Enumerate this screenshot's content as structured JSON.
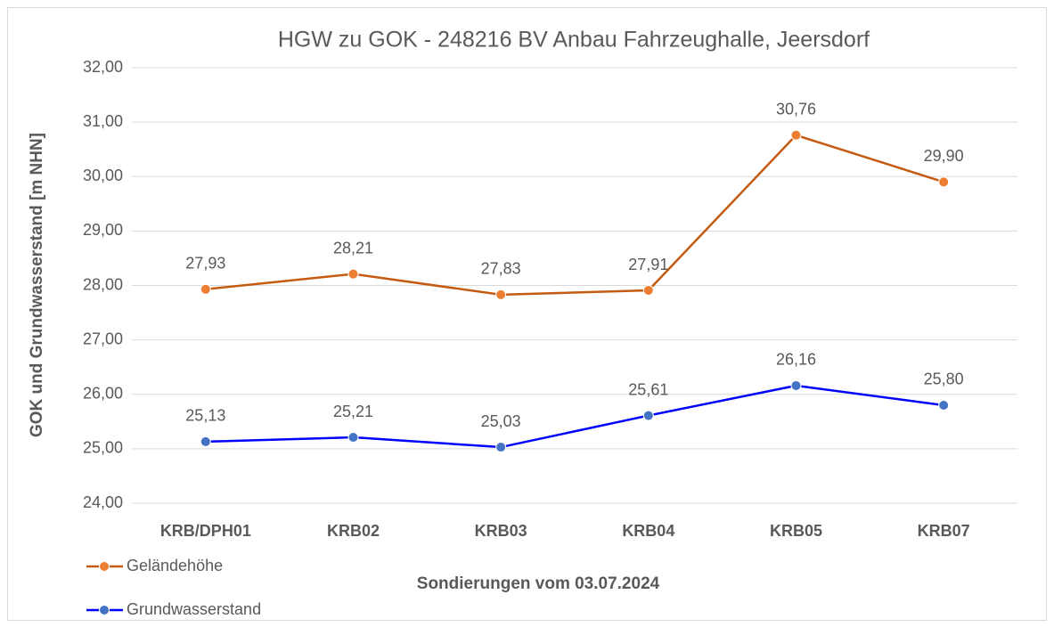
{
  "chart_data": {
    "type": "line",
    "title": "HGW zu GOK - 248216 BV Anbau Fahrzeughalle, Jeersdorf",
    "x_label": "Sondierungen vom 03.07.2024",
    "y_label": "GOK und Grundwasserstand [m NHN]",
    "categories": [
      "KRB/DPH01",
      "KRB02",
      "KRB03",
      "KRB04",
      "KRB05",
      "KRB07"
    ],
    "series": [
      {
        "name": "Geländehöhe",
        "color": "#c55a11",
        "marker_color": "#ed7d31",
        "values": [
          27.93,
          28.21,
          27.83,
          27.91,
          30.76,
          29.9
        ],
        "value_labels": [
          "27,93",
          "28,21",
          "27,83",
          "27,91",
          "30,76",
          "29,90"
        ]
      },
      {
        "name": "Grundwasserstand",
        "color": "#0000ff",
        "marker_color": "#4472c4",
        "values": [
          25.13,
          25.21,
          25.03,
          25.61,
          26.16,
          25.8
        ],
        "value_labels": [
          "25,13",
          "25,21",
          "25,03",
          "25,61",
          "26,16",
          "25,80"
        ]
      }
    ],
    "ylim": [
      24,
      32
    ],
    "yticks": [
      {
        "value": 24,
        "label": "24,00"
      },
      {
        "value": 25,
        "label": "25,00"
      },
      {
        "value": 26,
        "label": "26,00"
      },
      {
        "value": 27,
        "label": "27,00"
      },
      {
        "value": 28,
        "label": "28,00"
      },
      {
        "value": 29,
        "label": "29,00"
      },
      {
        "value": 30,
        "label": "30,00"
      },
      {
        "value": 31,
        "label": "31,00"
      },
      {
        "value": 32,
        "label": "32,00"
      }
    ],
    "grid": true,
    "legend": "bottom-left"
  }
}
